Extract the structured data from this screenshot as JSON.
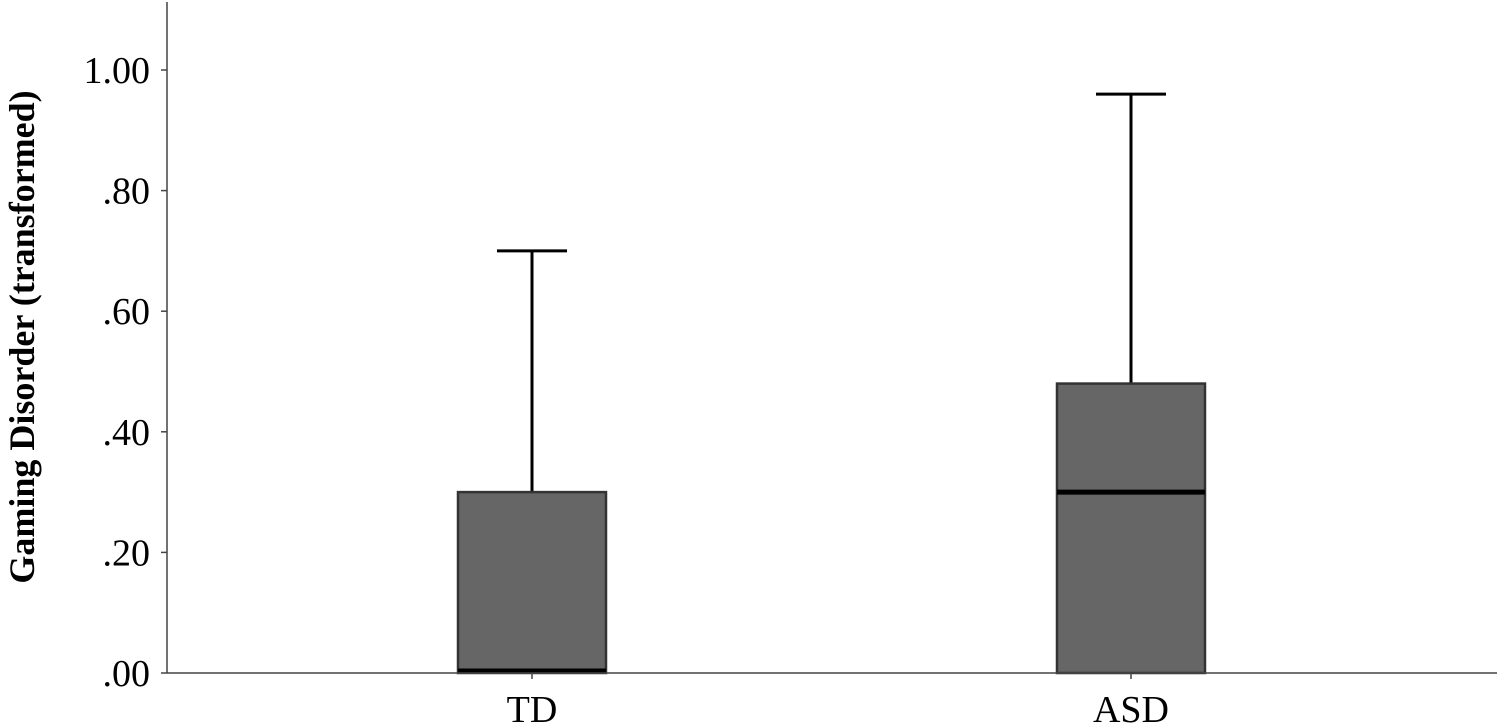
{
  "chart_data": {
    "type": "boxplot",
    "title": "",
    "xlabel": "",
    "ylabel": "Gaming Disorder (transformed)",
    "ylim": [
      0,
      1.1
    ],
    "yticks": [
      {
        "value": 0.0,
        "label": ".00"
      },
      {
        "value": 0.2,
        "label": ".20"
      },
      {
        "value": 0.4,
        "label": ".40"
      },
      {
        "value": 0.6,
        "label": ".60"
      },
      {
        "value": 0.8,
        "label": ".80"
      },
      {
        "value": 1.0,
        "label": "1.00"
      }
    ],
    "categories": [
      "TD",
      "ASD"
    ],
    "boxes": [
      {
        "category": "TD",
        "whisker_low": 0.0,
        "q1": 0.0,
        "median": 0.0,
        "q3": 0.3,
        "whisker_high": 0.7
      },
      {
        "category": "ASD",
        "whisker_low": 0.0,
        "q1": 0.0,
        "median": 0.3,
        "q3": 0.48,
        "whisker_high": 0.96
      }
    ],
    "grid": false,
    "legend": "none",
    "colors": {
      "box_fill": "#666666",
      "box_stroke": "#333333",
      "line": "#000000",
      "axis": "#444444"
    }
  }
}
